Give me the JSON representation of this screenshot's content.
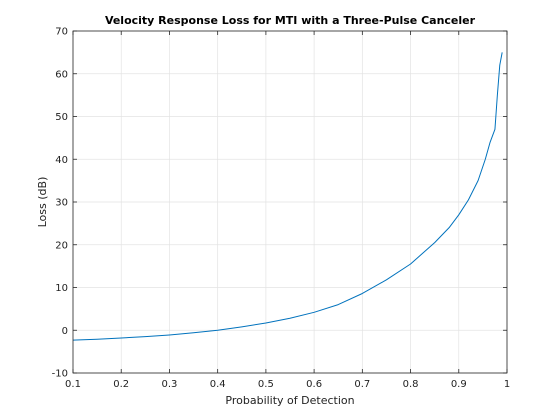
{
  "chart_data": {
    "type": "line",
    "title": "Velocity Response Loss for MTI with a Three-Pulse Canceler",
    "xlabel": "Probability of Detection",
    "ylabel": "Loss (dB)",
    "xlim": [
      0.1,
      1.0
    ],
    "ylim": [
      -10,
      70
    ],
    "xticks": [
      0.1,
      0.2,
      0.3,
      0.4,
      0.5,
      0.6,
      0.7,
      0.8,
      0.9,
      1.0
    ],
    "xtick_labels": [
      "0.1",
      "0.2",
      "0.3",
      "0.4",
      "0.5",
      "0.6",
      "0.7",
      "0.8",
      "0.9",
      "1"
    ],
    "yticks": [
      -10,
      0,
      10,
      20,
      30,
      40,
      50,
      60,
      70
    ],
    "ytick_labels": [
      "-10",
      "0",
      "10",
      "20",
      "30",
      "40",
      "50",
      "60",
      "70"
    ],
    "grid": true,
    "series": [
      {
        "color": "#0072BD",
        "x": [
          0.1,
          0.15,
          0.2,
          0.25,
          0.3,
          0.35,
          0.4,
          0.45,
          0.5,
          0.55,
          0.6,
          0.65,
          0.7,
          0.75,
          0.8,
          0.85,
          0.88,
          0.9,
          0.92,
          0.94,
          0.955,
          0.965,
          0.975,
          0.98,
          0.985,
          0.99
        ],
        "y": [
          -2.3,
          -2.1,
          -1.8,
          -1.5,
          -1.1,
          -0.6,
          0.0,
          0.8,
          1.7,
          2.8,
          4.2,
          6.0,
          8.6,
          11.8,
          15.5,
          20.5,
          24.0,
          27.0,
          30.5,
          35.0,
          40.0,
          44.0,
          47.0,
          55.0,
          62.0,
          65.0
        ]
      }
    ]
  }
}
